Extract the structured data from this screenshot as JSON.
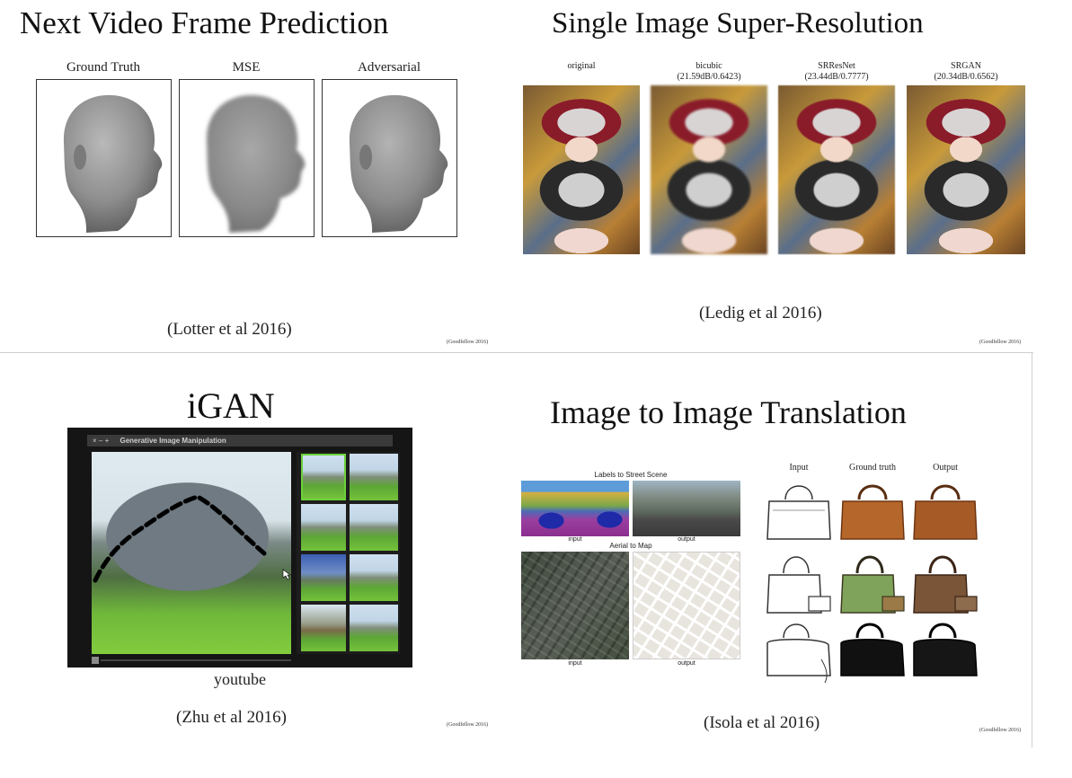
{
  "panels": {
    "video": {
      "title": "Next Video Frame Prediction",
      "labels": [
        "Ground Truth",
        "MSE",
        "Adversarial"
      ],
      "citation": "(Lotter et al 2016)",
      "credit": "(Goodfellow 2016)"
    },
    "superres": {
      "title": "Single Image Super-Resolution",
      "images": [
        {
          "name": "original",
          "metric": ""
        },
        {
          "name": "bicubic",
          "metric": "(21.59dB/0.6423)"
        },
        {
          "name": "SRResNet",
          "metric": "(23.44dB/0.7777)"
        },
        {
          "name": "SRGAN",
          "metric": "(20.34dB/0.6562)"
        }
      ],
      "citation": "(Ledig et al 2016)",
      "credit": "(Goodfellow 2016)"
    },
    "igan": {
      "title": "iGAN",
      "window_title": "Generative Image Manipulation",
      "window_controls": "× – +",
      "caption": "youtube",
      "citation": "(Zhu et al 2016)",
      "credit": "(Goodfellow 2016)"
    },
    "translation": {
      "title": "Image to Image Translation",
      "street_title": "Labels to Street Scene",
      "map_title": "Aerial to Map",
      "input_label": "input",
      "output_label": "output",
      "bag_headers": [
        "Input",
        "Ground truth",
        "Output"
      ],
      "citation": "(Isola et al 2016)",
      "credit": "(Goodfellow 2016)"
    }
  },
  "colors": {
    "background": "#ffffff",
    "text": "#111111",
    "igan_selection": "#6cd23a"
  }
}
